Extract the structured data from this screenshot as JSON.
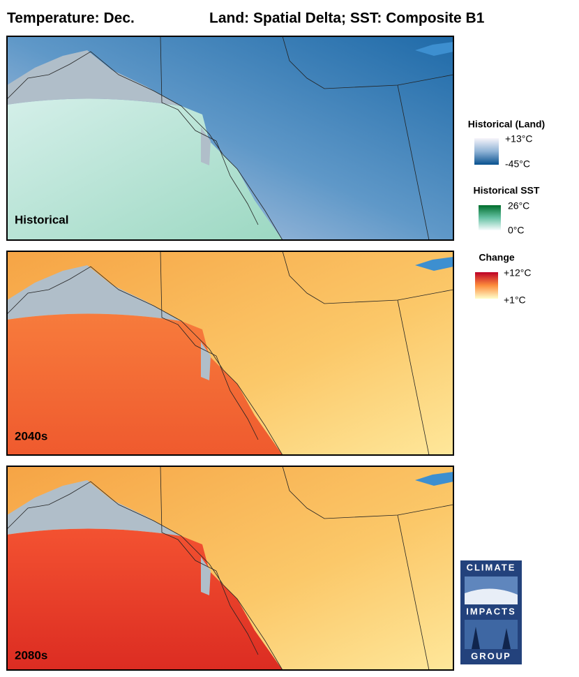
{
  "header": {
    "left": "Temperature: Dec.",
    "right": "Land: Spatial Delta; SST: Composite B1"
  },
  "panels": [
    {
      "label": "Historical"
    },
    {
      "label": "2040s"
    },
    {
      "label": "2080s"
    }
  ],
  "legends": [
    {
      "title": "Historical (Land)",
      "max": "+13°C",
      "min": "-45°C"
    },
    {
      "title": "Historical SST",
      "max": "26°C",
      "min": "0°C"
    },
    {
      "title": "Change",
      "max": "+12°C",
      "min": "+1°C"
    }
  ],
  "logo": {
    "top": "CLIMATE",
    "middle": "IMPACTS",
    "bottom": "GROUP"
  }
}
